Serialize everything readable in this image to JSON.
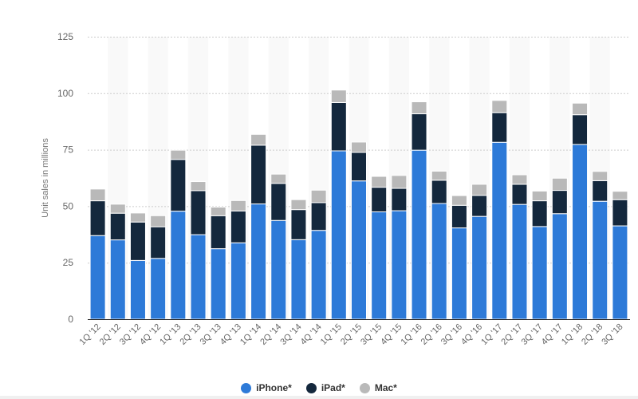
{
  "chart_data": {
    "type": "bar",
    "stacked": true,
    "ylabel": "Unit sales in millions",
    "xlabel": "",
    "ylim": [
      0,
      125
    ],
    "yticks": [
      0,
      25,
      50,
      75,
      100,
      125
    ],
    "grid": true,
    "legend_position": "bottom",
    "categories": [
      "1Q '12",
      "2Q '12",
      "3Q '12",
      "4Q '12",
      "1Q '13",
      "2Q '13",
      "3Q '13",
      "4Q '13",
      "1Q '14",
      "2Q '14",
      "3Q '14",
      "4Q '14",
      "1Q '15",
      "2Q '15",
      "3Q '15",
      "4Q '15",
      "1Q '16",
      "2Q '16",
      "3Q '16",
      "4Q '16",
      "1Q '17",
      "2Q '17",
      "3Q '17",
      "4Q '17",
      "1Q '18",
      "2Q '18",
      "3Q '18"
    ],
    "series": [
      {
        "name": "iPhone*",
        "color": "#2d7ad8",
        "values": [
          37.0,
          35.1,
          26.0,
          26.9,
          47.8,
          37.4,
          31.2,
          33.8,
          51.0,
          43.7,
          35.2,
          39.3,
          74.5,
          61.2,
          47.5,
          48.0,
          74.8,
          51.2,
          40.4,
          45.5,
          78.3,
          50.8,
          41.0,
          46.7,
          77.3,
          52.2,
          41.3
        ]
      },
      {
        "name": "iPad*",
        "color": "#14283d",
        "values": [
          15.4,
          11.8,
          17.0,
          14.0,
          22.9,
          19.5,
          14.6,
          14.1,
          26.0,
          16.4,
          13.3,
          12.3,
          21.4,
          12.6,
          10.9,
          9.9,
          16.1,
          10.3,
          10.0,
          9.3,
          13.1,
          8.9,
          11.4,
          10.3,
          13.2,
          9.1,
          11.6
        ]
      },
      {
        "name": "Mac*",
        "color": "#b9b9b9",
        "values": [
          5.2,
          4.0,
          4.0,
          4.9,
          4.1,
          4.0,
          3.8,
          4.6,
          4.8,
          4.1,
          4.4,
          5.5,
          5.5,
          4.6,
          4.8,
          5.7,
          5.3,
          4.0,
          4.3,
          4.9,
          5.4,
          4.2,
          4.3,
          5.4,
          5.1,
          4.1,
          3.7
        ]
      }
    ]
  }
}
